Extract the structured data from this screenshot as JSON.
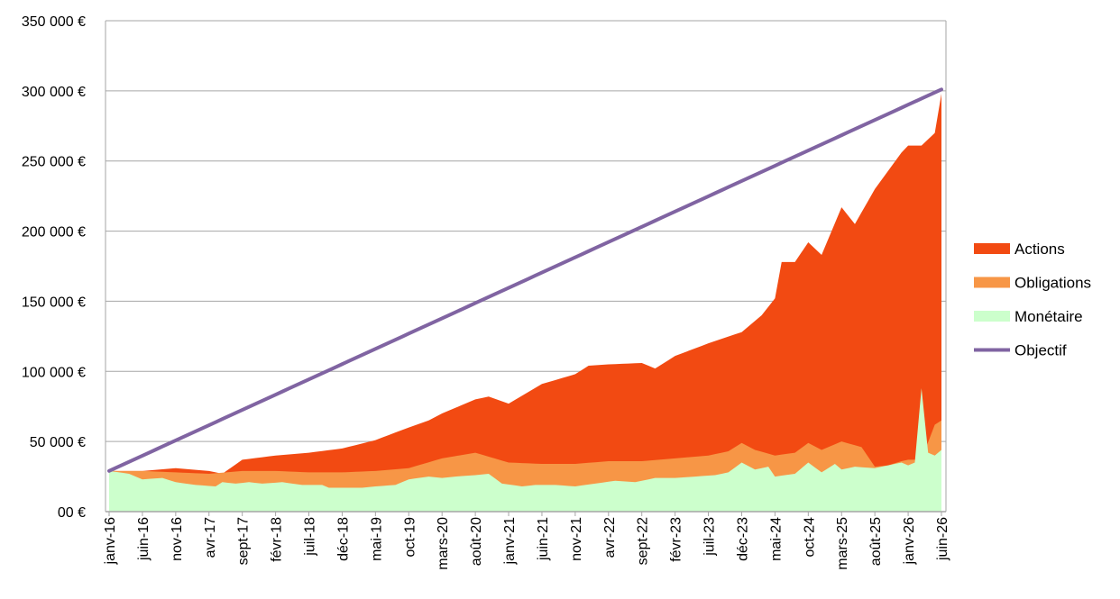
{
  "chart_data": {
    "type": "area",
    "stacked": true,
    "x_start": "2016-01",
    "x_end": "2026-06",
    "ylim": [
      0,
      350000
    ],
    "y_ticks": [
      0,
      50000,
      100000,
      150000,
      200000,
      250000,
      300000,
      350000
    ],
    "y_tick_labels": [
      "00 €",
      "50 000 €",
      "100 000 €",
      "150 000 €",
      "200 000 €",
      "250 000 €",
      "300 000 €",
      "350 000 €"
    ],
    "x_tick_labels": [
      "janv-16",
      "juin-16",
      "nov-16",
      "avr-17",
      "sept-17",
      "févr-18",
      "juil-18",
      "déc-18",
      "mai-19",
      "oct-19",
      "mars-20",
      "août-20",
      "janv-21",
      "juin-21",
      "nov-21",
      "avr-22",
      "sept-22",
      "févr-23",
      "juil-23",
      "déc-23",
      "mai-24",
      "oct-24",
      "mars-25",
      "août-25",
      "janv-26",
      "juin-26"
    ],
    "grid": true,
    "legend_position": "right",
    "series_keypoints": [
      {
        "name": "Monétaire",
        "color": "#ccffcc",
        "points": [
          [
            "2016-01",
            29000
          ],
          [
            "2016-04",
            27000
          ],
          [
            "2016-06",
            23000
          ],
          [
            "2016-09",
            24000
          ],
          [
            "2016-11",
            21000
          ],
          [
            "2017-02",
            19000
          ],
          [
            "2017-05",
            18000
          ],
          [
            "2017-06",
            21000
          ],
          [
            "2017-08",
            20000
          ],
          [
            "2017-10",
            21000
          ],
          [
            "2017-12",
            20000
          ],
          [
            "2018-03",
            21000
          ],
          [
            "2018-06",
            19000
          ],
          [
            "2018-09",
            19000
          ],
          [
            "2018-10",
            17000
          ],
          [
            "2018-12",
            17000
          ],
          [
            "2019-03",
            17000
          ],
          [
            "2019-05",
            18000
          ],
          [
            "2019-08",
            19000
          ],
          [
            "2019-10",
            23000
          ],
          [
            "2020-01",
            25000
          ],
          [
            "2020-03",
            24000
          ],
          [
            "2020-05",
            25000
          ],
          [
            "2020-08",
            26000
          ],
          [
            "2020-10",
            27000
          ],
          [
            "2020-12",
            20000
          ],
          [
            "2021-03",
            18000
          ],
          [
            "2021-05",
            19000
          ],
          [
            "2021-08",
            19000
          ],
          [
            "2021-11",
            18000
          ],
          [
            "2022-02",
            20000
          ],
          [
            "2022-05",
            22000
          ],
          [
            "2022-08",
            21000
          ],
          [
            "2022-11",
            24000
          ],
          [
            "2023-02",
            24000
          ],
          [
            "2023-05",
            25000
          ],
          [
            "2023-08",
            26000
          ],
          [
            "2023-10",
            28000
          ],
          [
            "2023-12",
            35000
          ],
          [
            "2024-02",
            30000
          ],
          [
            "2024-04",
            32000
          ],
          [
            "2024-05",
            25000
          ],
          [
            "2024-08",
            27000
          ],
          [
            "2024-10",
            35000
          ],
          [
            "2024-12",
            28000
          ],
          [
            "2025-02",
            34000
          ],
          [
            "2025-03",
            30000
          ],
          [
            "2025-05",
            32000
          ],
          [
            "2025-08",
            31000
          ],
          [
            "2025-10",
            33000
          ],
          [
            "2025-12",
            35000
          ],
          [
            "2026-01",
            33000
          ],
          [
            "2026-02",
            35000
          ],
          [
            "2026-03",
            88000
          ],
          [
            "2026-04",
            42000
          ],
          [
            "2026-05",
            40000
          ],
          [
            "2026-06",
            44000
          ]
        ]
      },
      {
        "name": "Obligations",
        "color": "#f79646",
        "points": [
          [
            "2016-01",
            29000
          ],
          [
            "2016-06",
            29000
          ],
          [
            "2016-11",
            28000
          ],
          [
            "2017-04",
            27000
          ],
          [
            "2017-09",
            29000
          ],
          [
            "2018-02",
            29000
          ],
          [
            "2018-07",
            28000
          ],
          [
            "2018-12",
            28000
          ],
          [
            "2019-05",
            29000
          ],
          [
            "2019-10",
            31000
          ],
          [
            "2020-03",
            38000
          ],
          [
            "2020-08",
            42000
          ],
          [
            "2021-01",
            35000
          ],
          [
            "2021-06",
            34000
          ],
          [
            "2021-11",
            34000
          ],
          [
            "2022-04",
            36000
          ],
          [
            "2022-09",
            36000
          ],
          [
            "2023-02",
            38000
          ],
          [
            "2023-07",
            40000
          ],
          [
            "2023-10",
            43000
          ],
          [
            "2023-12",
            49000
          ],
          [
            "2024-02",
            44000
          ],
          [
            "2024-05",
            40000
          ],
          [
            "2024-08",
            42000
          ],
          [
            "2024-10",
            49000
          ],
          [
            "2024-12",
            44000
          ],
          [
            "2025-03",
            50000
          ],
          [
            "2025-06",
            46000
          ],
          [
            "2025-08",
            32000
          ],
          [
            "2025-10",
            33000
          ],
          [
            "2025-12",
            36000
          ],
          [
            "2026-01",
            37000
          ],
          [
            "2026-03",
            37000
          ],
          [
            "2026-05",
            62000
          ],
          [
            "2026-06",
            65000
          ]
        ]
      },
      {
        "name": "Actions",
        "color": "#f24a12",
        "points": [
          [
            "2016-01",
            29000
          ],
          [
            "2016-06",
            29000
          ],
          [
            "2016-11",
            31000
          ],
          [
            "2017-04",
            29000
          ],
          [
            "2017-06",
            27000
          ],
          [
            "2017-09",
            37000
          ],
          [
            "2018-02",
            40000
          ],
          [
            "2018-07",
            42000
          ],
          [
            "2018-12",
            45000
          ],
          [
            "2019-05",
            51000
          ],
          [
            "2019-10",
            60000
          ],
          [
            "2020-01",
            65000
          ],
          [
            "2020-03",
            70000
          ],
          [
            "2020-08",
            80000
          ],
          [
            "2020-10",
            82000
          ],
          [
            "2021-01",
            77000
          ],
          [
            "2021-06",
            91000
          ],
          [
            "2021-11",
            98000
          ],
          [
            "2022-01",
            104000
          ],
          [
            "2022-04",
            105000
          ],
          [
            "2022-09",
            106000
          ],
          [
            "2022-11",
            102000
          ],
          [
            "2023-02",
            111000
          ],
          [
            "2023-07",
            120000
          ],
          [
            "2023-12",
            128000
          ],
          [
            "2024-03",
            140000
          ],
          [
            "2024-05",
            152000
          ],
          [
            "2024-06",
            178000
          ],
          [
            "2024-08",
            178000
          ],
          [
            "2024-10",
            192000
          ],
          [
            "2024-12",
            183000
          ],
          [
            "2025-03",
            217000
          ],
          [
            "2025-05",
            205000
          ],
          [
            "2025-08",
            230000
          ],
          [
            "2025-12",
            256000
          ],
          [
            "2026-01",
            261000
          ],
          [
            "2026-03",
            261000
          ],
          [
            "2026-05",
            270000
          ],
          [
            "2026-06",
            298000
          ]
        ]
      },
      {
        "name": "Objectif",
        "color": "#8064a2",
        "type": "line",
        "points": [
          [
            "2016-01",
            29000
          ],
          [
            "2026-06",
            301000
          ]
        ]
      }
    ]
  }
}
